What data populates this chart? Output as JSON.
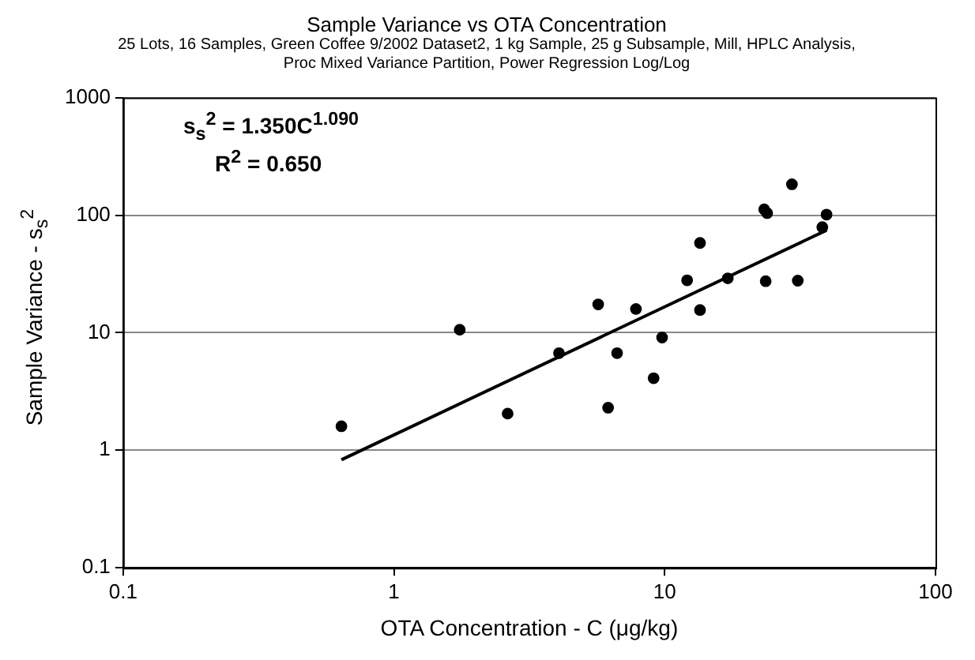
{
  "chart_data": {
    "type": "scatter",
    "title": "Sample Variance vs OTA Concentration",
    "subtitle": "25 Lots, 16 Samples, Green Coffee 9/2002 Dataset2, 1 kg Sample, 25 g Subsample, Mill, HPLC Analysis, Proc Mixed Variance Partition, Power Regression Log/Log",
    "xlabel": "OTA Concentration - C (μg/kg)",
    "ylabel": "Sample Variance - s$_{s}$$^{2}$",
    "annotations": [
      "s$_{s}$$^{2}$ = 1.350C$^{1.090}$",
      "R$^{2}$ = 0.650"
    ],
    "series": [
      {
        "color": "#000000",
        "marker": "circle",
        "x": [
          0.64,
          1.75,
          2.63,
          4.07,
          5.68,
          6.18,
          6.67,
          7.83,
          9.1,
          9.78,
          12.1,
          13.5,
          13.5,
          17.1,
          23.3,
          23.9,
          23.6,
          29.5,
          31,
          39.6,
          38.2
        ],
        "values": [
          1.6,
          10.6,
          2.05,
          6.7,
          17.4,
          2.3,
          6.7,
          15.9,
          4.1,
          9.1,
          27.9,
          15.6,
          58,
          29,
          112,
          104,
          27.4,
          183,
          27.7,
          101,
          79
        ]
      },
      {
        "type": "line",
        "color": "#000000",
        "marker": "none",
        "x": [
          0.64,
          39.6
        ],
        "values": [
          0.83,
          74.4
        ]
      }
    ],
    "log": "xy",
    "xlim": [
      0.1,
      100
    ],
    "xticks": [
      0.1,
      1,
      10,
      100
    ],
    "ylim": [
      0.1,
      1000
    ],
    "yticks": [
      0.1,
      1,
      10,
      100,
      1000
    ],
    "grid": "y",
    "legend": false
  }
}
